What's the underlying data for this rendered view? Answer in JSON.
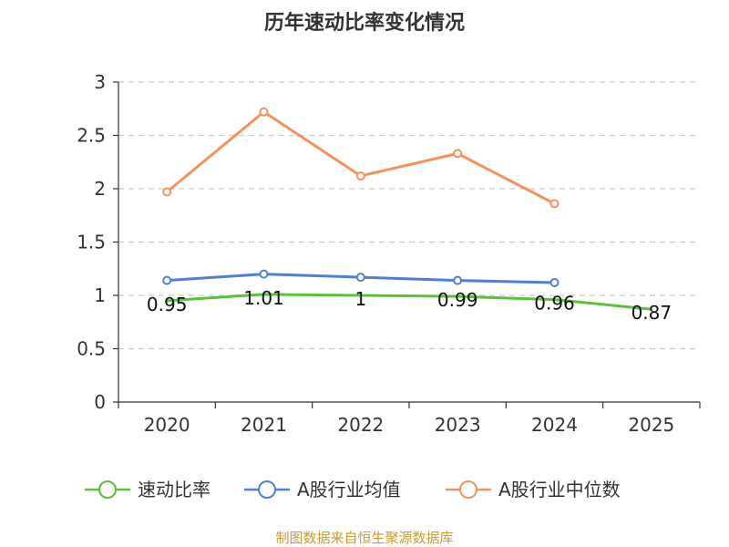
{
  "chart_data": {
    "type": "line",
    "title": "历年速动比率变化情况",
    "categories": [
      "2020",
      "2021",
      "2022",
      "2023",
      "2024",
      "2025"
    ],
    "ylim": [
      0,
      3
    ],
    "yticks": [
      "0",
      "0.5",
      "1",
      "1.5",
      "2",
      "2.5",
      "3"
    ],
    "ytick_values": [
      0,
      0.5,
      1,
      1.5,
      2,
      2.5,
      3
    ],
    "grid": true,
    "legend_position": "bottom",
    "series": [
      {
        "name": "速动比率",
        "color": "#5bc238",
        "values": [
          0.95,
          1.01,
          1.0,
          0.99,
          0.96,
          0.87
        ],
        "labels": [
          "0.95",
          "1.01",
          "1",
          "0.99",
          "0.96",
          "0.87"
        ]
      },
      {
        "name": "A股行业均值",
        "color": "#4f7fdb",
        "values": [
          1.14,
          1.2,
          1.17,
          1.14,
          1.12,
          null
        ]
      },
      {
        "name": "A股行业中位数",
        "color": "#f4925e",
        "values": [
          1.97,
          2.72,
          2.12,
          2.33,
          1.86,
          null
        ]
      }
    ]
  },
  "source_text": "制图数据来自恒生聚源数据库"
}
